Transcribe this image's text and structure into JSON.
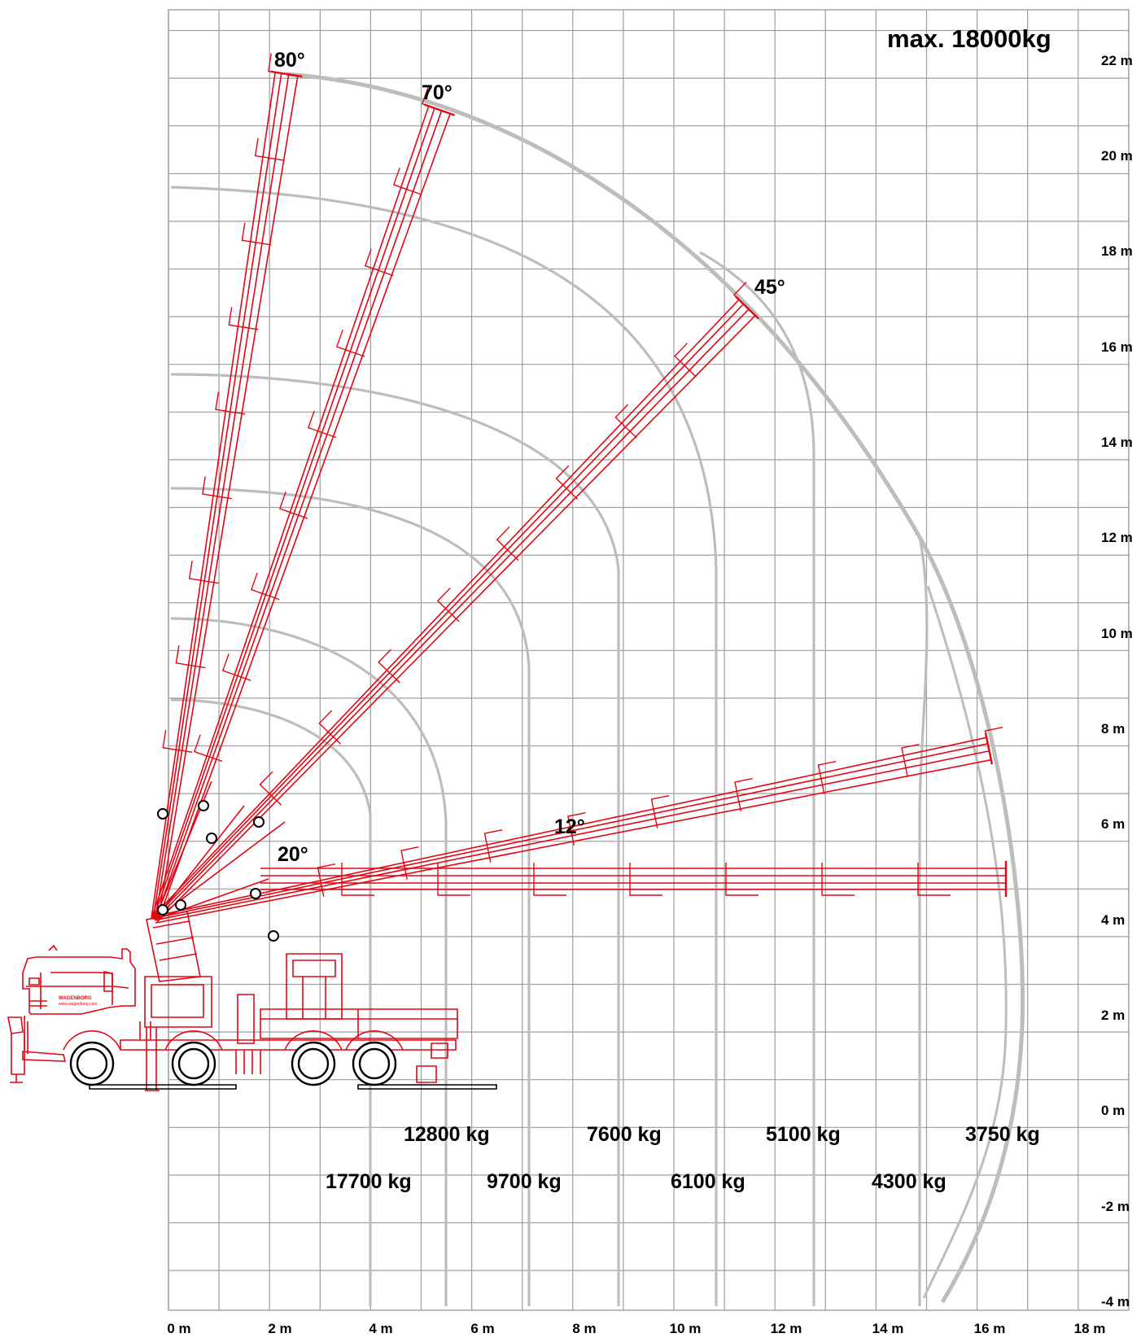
{
  "title": "max. 18000kg",
  "colors": {
    "grid": "#9e9e9e",
    "curves": "#bdbdbd",
    "crane": "#e30613",
    "text": "#000000"
  },
  "x_axis": {
    "unit": "m",
    "tick_labels": [
      "0 m",
      "2 m",
      "4 m",
      "6 m",
      "8 m",
      "10 m",
      "12 m",
      "14 m",
      "16 m",
      "18 m"
    ]
  },
  "y_axis": {
    "unit": "m",
    "tick_labels": [
      "22 m",
      "20 m",
      "18 m",
      "16 m",
      "14 m",
      "12 m",
      "10 m",
      "8 m",
      "6 m",
      "4 m",
      "2 m",
      "0 m",
      "-2 m",
      "-4 m"
    ]
  },
  "boom_angles": [
    "80°",
    "70°",
    "45°",
    "20°",
    "12°"
  ],
  "load_capacities": [
    {
      "label": "17700 kg",
      "reach_m": 4.3
    },
    {
      "label": "12800 kg",
      "reach_m": 5.9
    },
    {
      "label": "9700 kg",
      "reach_m": 7.6
    },
    {
      "label": "7600 kg",
      "reach_m": 9.6
    },
    {
      "label": "6100 kg",
      "reach_m": 11.6
    },
    {
      "label": "5100 kg",
      "reach_m": 13.7
    },
    {
      "label": "4300 kg",
      "reach_m": 15.8
    },
    {
      "label": "3750 kg",
      "reach_m": 17.9
    }
  ],
  "truck": {
    "brand": "WAGENBORG",
    "website": "www.wagenborg.com"
  }
}
